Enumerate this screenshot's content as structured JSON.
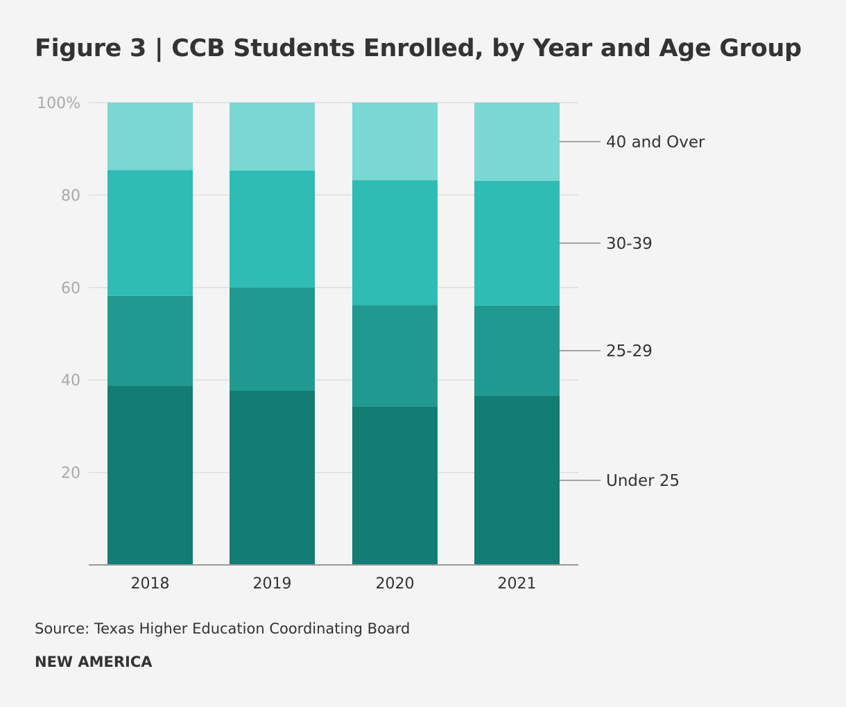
{
  "title": "Figure 3 | CCB Students Enrolled, by Year and Age Group",
  "source": "Source: Texas Higher Education Coordinating Board",
  "brand": "NEW AMERICA",
  "chart_data": {
    "type": "bar",
    "stacked": true,
    "title": "Figure 3 | CCB Students Enrolled, by Year and Age Group",
    "xlabel": "",
    "ylabel": "",
    "ylim": [
      0,
      100
    ],
    "yticks": [
      20,
      40,
      60,
      80,
      100
    ],
    "ytick_labels": [
      "20",
      "40",
      "60",
      "80",
      "100%"
    ],
    "grid": true,
    "legend_position": "right, inline with 2021 bar",
    "categories": [
      "2018",
      "2019",
      "2020",
      "2021"
    ],
    "series": [
      {
        "name": "Under 25",
        "color": "#117d73",
        "values": [
          38.8,
          37.7,
          34.3,
          36.6
        ]
      },
      {
        "name": "25-29",
        "color": "#209a91",
        "values": [
          19.4,
          22.3,
          21.9,
          19.5
        ]
      },
      {
        "name": "30-39",
        "color": "#2ebcb4",
        "values": [
          27.2,
          25.3,
          27.0,
          27.0
        ]
      },
      {
        "name": "40 and Over",
        "color": "#79d8d3",
        "values": [
          14.6,
          14.7,
          16.8,
          16.9
        ]
      }
    ]
  }
}
